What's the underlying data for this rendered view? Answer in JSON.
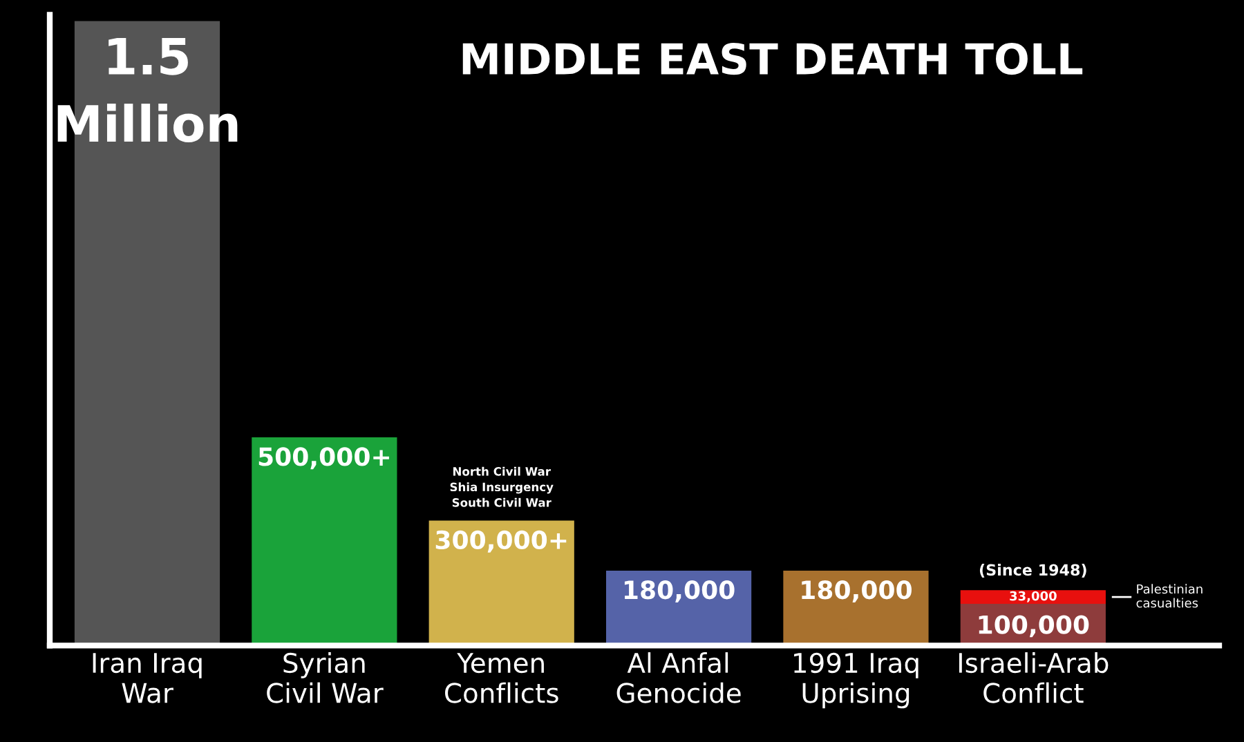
{
  "chart_data": {
    "type": "bar",
    "title": "MIDDLE EAST DEATH TOLL",
    "stacked": true,
    "grid": false,
    "legend": false,
    "tick_labels": "x",
    "categories": [
      "Iran Iraq\nWar",
      "Syrian\nCivil War",
      "Yemen\nConflicts",
      "Al Anfal\nGenocide",
      "1991 Iraq\nUprising",
      "Israeli-Arab\nConflict"
    ],
    "series": [
      {
        "colors": [
          "#555555",
          "#1aa33a",
          "#d1b24c",
          "#5563a8",
          "#a8712e",
          "#8e3c3c"
        ],
        "values": [
          1500000,
          500000,
          300000,
          180000,
          180000,
          100000
        ],
        "value_labels": [
          null,
          "500,000+",
          "300,000+",
          "180,000",
          "180,000",
          "100,000"
        ]
      },
      {
        "name": "Palestinian casualties",
        "color": "#e8100e",
        "values": [
          null,
          null,
          null,
          null,
          null,
          33000
        ],
        "value_labels": [
          null,
          null,
          null,
          null,
          null,
          "33,000"
        ]
      }
    ],
    "annotations": [
      {
        "text": "1.5\nMillion",
        "x": "Iran Iraq\nWar",
        "y": 1500000
      },
      {
        "text": "North Civil War\nShia Insurgency\nSouth Civil War",
        "x": "Yemen\nConflicts",
        "y": 300000
      },
      {
        "text": "(Since 1948)",
        "x": "Israeli-Arab\nConflict",
        "y": 133000
      }
    ]
  }
}
